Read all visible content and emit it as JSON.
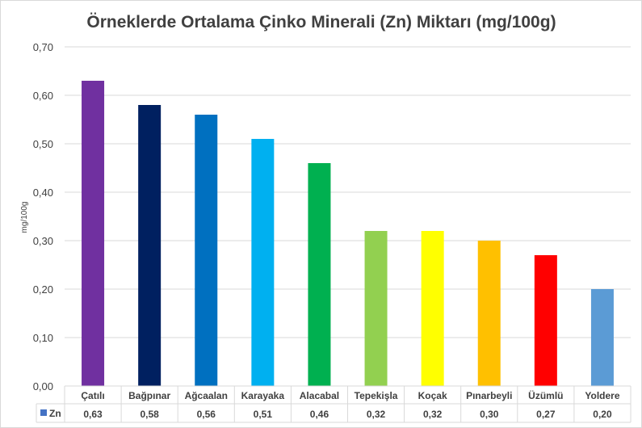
{
  "chart_data": {
    "type": "bar",
    "title": "Örneklerde Ortalama Çinko Minerali (Zn) Miktarı (mg/100g)",
    "ylabel": "mg/100g",
    "xlabel": "",
    "ylim": [
      0,
      0.7
    ],
    "yticks": [
      "0,00",
      "0,10",
      "0,20",
      "0,30",
      "0,40",
      "0,50",
      "0,60",
      "0,70"
    ],
    "grid": true,
    "legend_placement": "data-table-left",
    "categories": [
      "Çatılı",
      "Bağpınar",
      "Ağcaalan",
      "Karayaka",
      "Alacabal",
      "Tepekişla",
      "Koçak",
      "Pınarbeyli",
      "Üzümlü",
      "Yoldere"
    ],
    "series": [
      {
        "name": "Zn",
        "values": [
          0.63,
          0.58,
          0.56,
          0.51,
          0.46,
          0.32,
          0.32,
          0.3,
          0.27,
          0.2
        ],
        "labels": [
          "0,63",
          "0,58",
          "0,56",
          "0,51",
          "0,46",
          "0,32",
          "0,32",
          "0,30",
          "0,27",
          "0,20"
        ],
        "legend_color": "#4472c4"
      }
    ],
    "bar_colors": [
      "#7030a0",
      "#002060",
      "#0070c0",
      "#00b0f0",
      "#00b050",
      "#92d050",
      "#ffff00",
      "#ffc000",
      "#ff0000",
      "#5b9bd5"
    ]
  }
}
